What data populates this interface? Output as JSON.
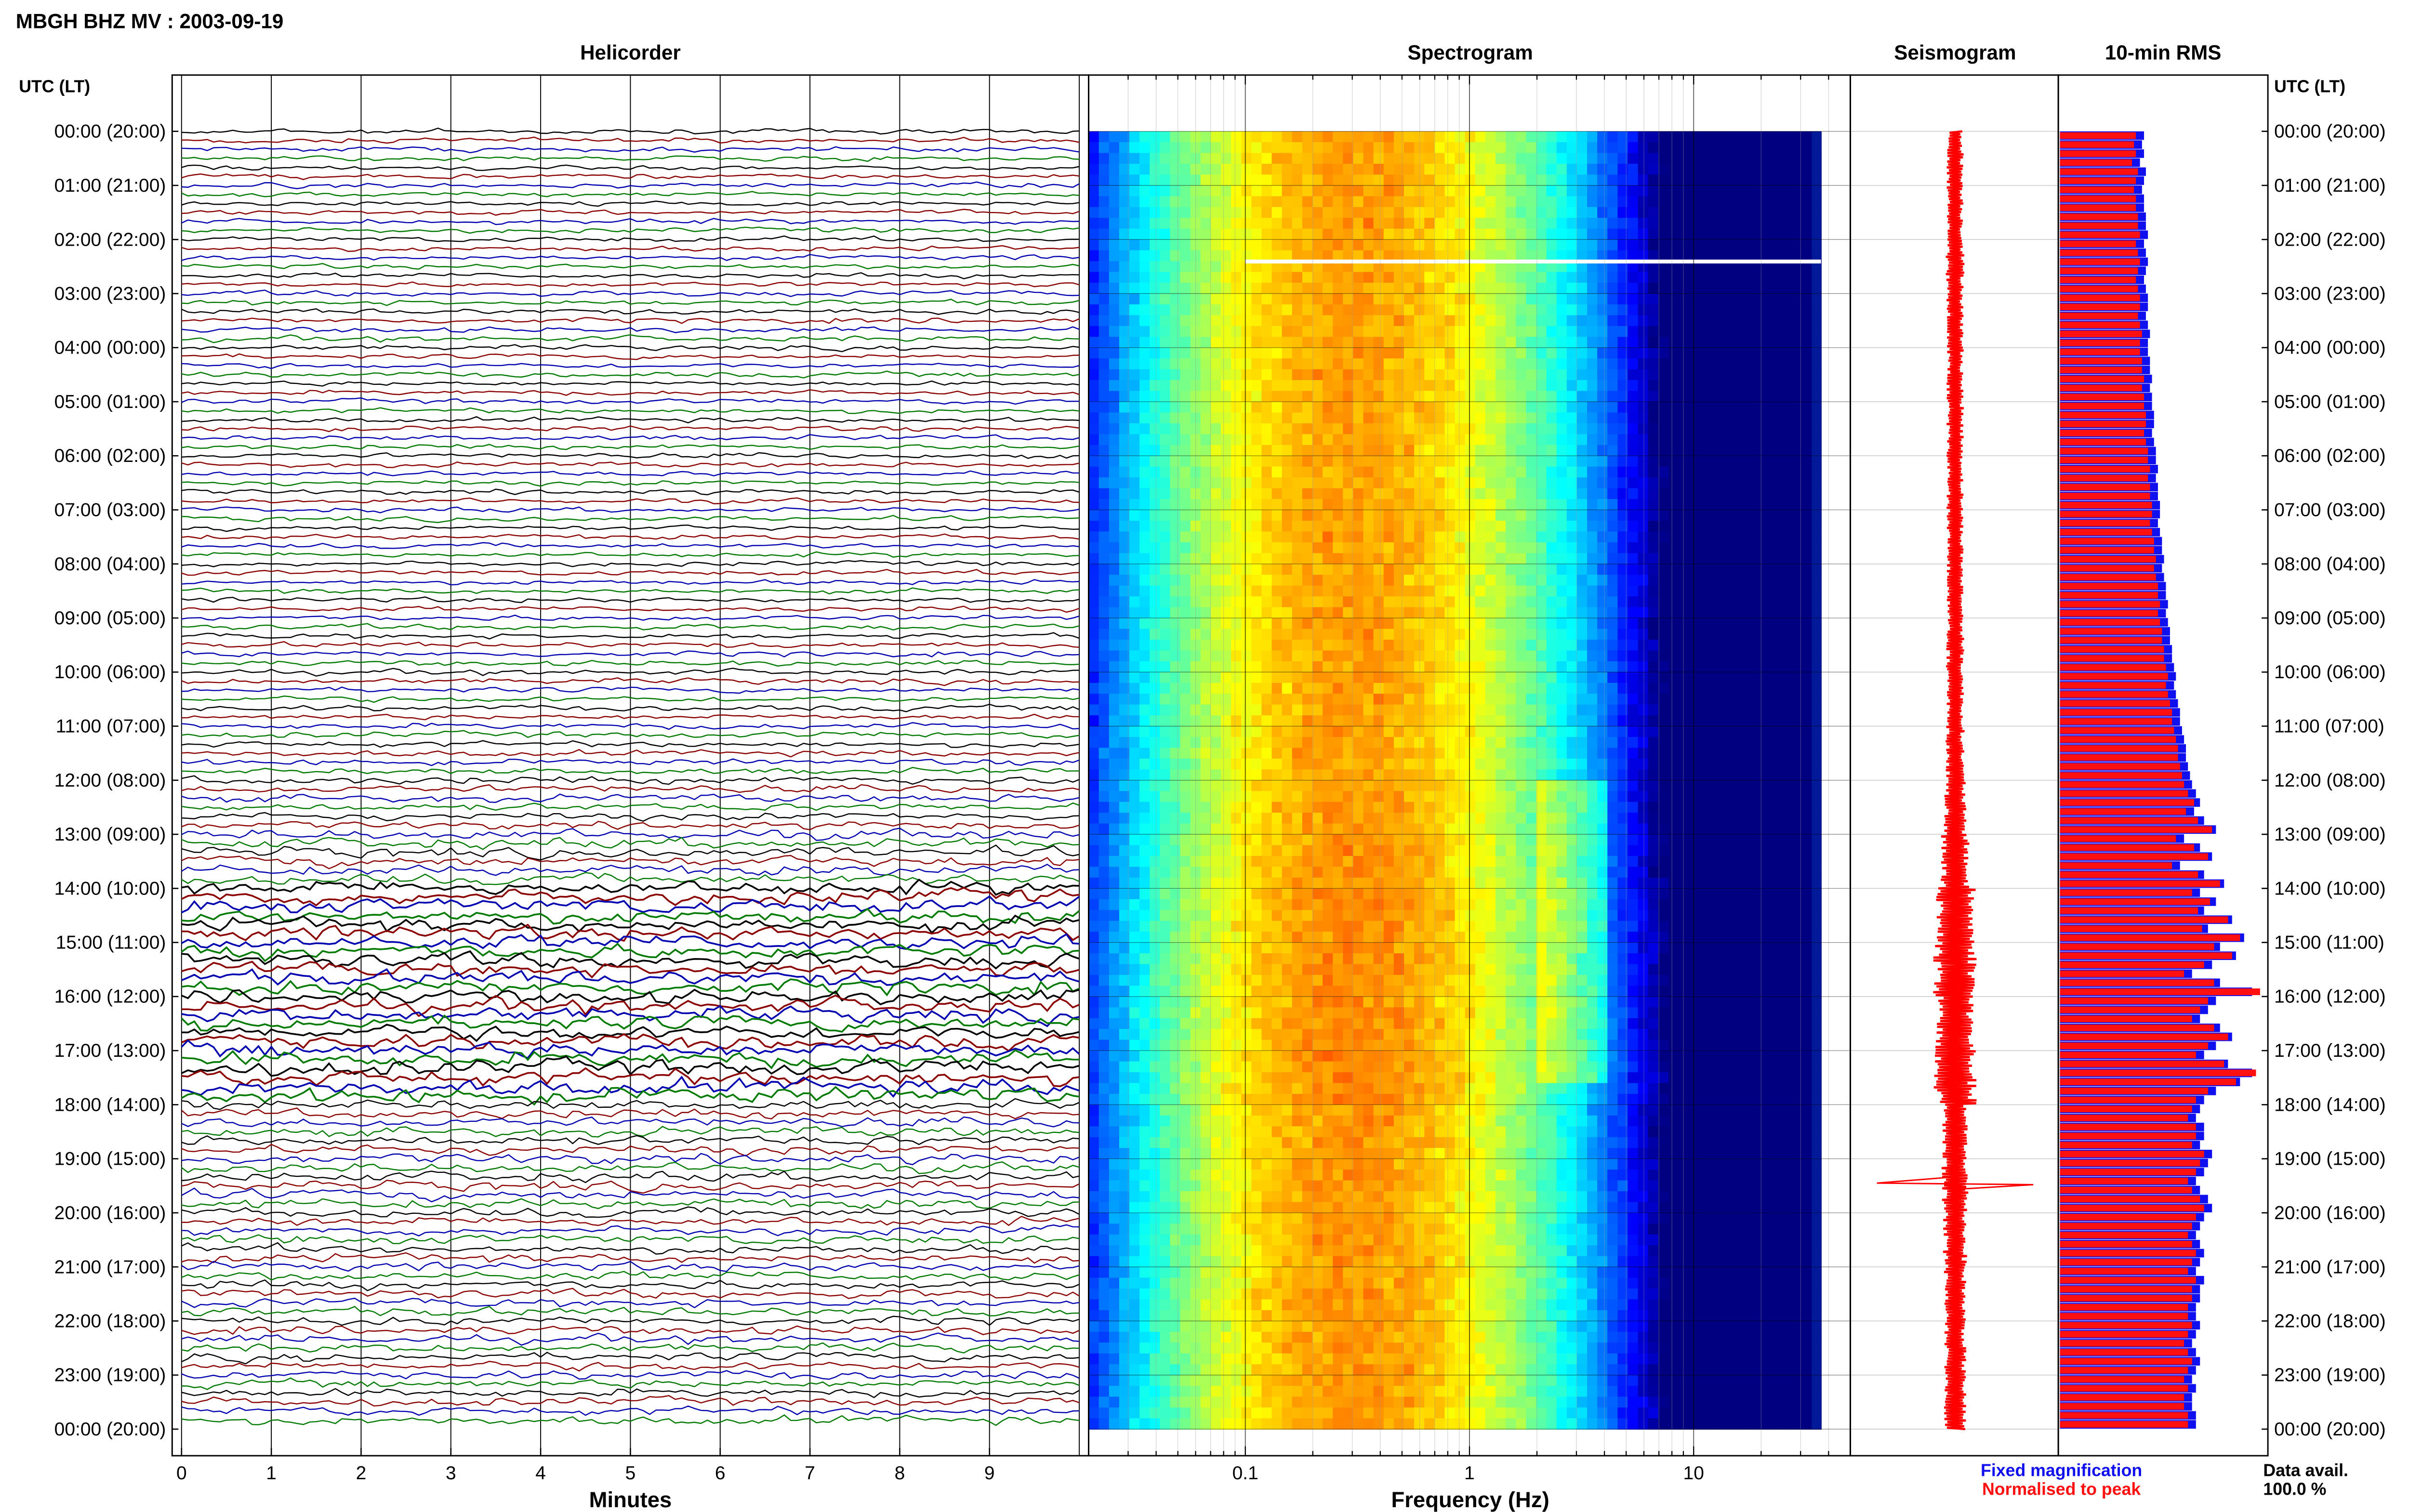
{
  "header": {
    "title": "MBGH BHZ MV : 2003-09-19",
    "time_label_left": "UTC (LT)",
    "time_label_right": "UTC (LT)"
  },
  "panels": {
    "helicorder": "Helicorder",
    "spectrogram": "Spectrogram",
    "seismogram": "Seismogram",
    "rms": "10-min RMS"
  },
  "legend": {
    "fixed": "Fixed magnification",
    "normalised": "Normalised to peak",
    "fixed_color": "#1010ee",
    "normalised_color": "#ff1010"
  },
  "data_avail": {
    "label": "Data avail.",
    "value": "100.0 %"
  },
  "chart_data": {
    "type": "heatmap",
    "time_ticks": [
      "00:00 (20:00)",
      "01:00 (21:00)",
      "02:00 (22:00)",
      "03:00 (23:00)",
      "04:00 (00:00)",
      "05:00 (01:00)",
      "06:00 (02:00)",
      "07:00 (03:00)",
      "08:00 (04:00)",
      "09:00 (05:00)",
      "10:00 (06:00)",
      "11:00 (07:00)",
      "12:00 (08:00)",
      "13:00 (09:00)",
      "14:00 (10:00)",
      "15:00 (11:00)",
      "16:00 (12:00)",
      "17:00 (13:00)",
      "18:00 (14:00)",
      "19:00 (15:00)",
      "20:00 (16:00)",
      "21:00 (17:00)",
      "22:00 (18:00)",
      "23:00 (19:00)",
      "00:00 (20:00)"
    ],
    "helicorder": {
      "xlabel": "Minutes",
      "xlim": [
        0,
        10
      ],
      "x_ticks": [
        "0",
        "1",
        "2",
        "3",
        "4",
        "5",
        "6",
        "7",
        "8",
        "9"
      ],
      "trace_colors": [
        "#000000",
        "#8b0000",
        "#0000b0",
        "#007a00"
      ],
      "hourly_activity": [
        1.0,
        1.0,
        1.0,
        1.1,
        1.0,
        1.0,
        1.0,
        1.0,
        1.0,
        1.1,
        1.1,
        1.2,
        1.5,
        2.1,
        2.9,
        3.0,
        2.9,
        3.2,
        1.9,
        2.0,
        1.8,
        1.8,
        1.7,
        1.7
      ]
    },
    "spectrogram": {
      "xlabel": "Frequency (Hz)",
      "x_scale": "log",
      "xlim": [
        0.02,
        50
      ],
      "x_ticks": [
        {
          "value": 0.1,
          "label": "0.1"
        },
        {
          "value": 1,
          "label": "1"
        },
        {
          "value": 10,
          "label": "10"
        }
      ],
      "max_frequency": 37,
      "peak_frequency": 0.3,
      "band_frequency_range": [
        2,
        4
      ],
      "band_hours": [
        12,
        17.5
      ],
      "gap_hour": 2.4
    },
    "rms": {
      "blue_values": [
        0.42,
        0.41,
        0.42,
        0.4,
        0.43,
        0.42,
        0.41,
        0.42,
        0.42,
        0.43,
        0.43,
        0.44,
        0.42,
        0.43,
        0.44,
        0.43,
        0.42,
        0.43,
        0.44,
        0.44,
        0.43,
        0.44,
        0.45,
        0.44,
        0.44,
        0.45,
        0.45,
        0.46,
        0.45,
        0.46,
        0.46,
        0.47,
        0.47,
        0.46,
        0.47,
        0.48,
        0.48,
        0.49,
        0.48,
        0.49,
        0.49,
        0.5,
        0.5,
        0.49,
        0.5,
        0.51,
        0.51,
        0.52,
        0.51,
        0.52,
        0.53,
        0.53,
        0.54,
        0.53,
        0.54,
        0.55,
        0.55,
        0.56,
        0.56,
        0.57,
        0.58,
        0.57,
        0.58,
        0.59,
        0.6,
        0.6,
        0.61,
        0.62,
        0.63,
        0.63,
        0.64,
        0.65,
        0.66,
        0.68,
        0.7,
        0.67,
        0.72,
        0.78,
        0.62,
        0.7,
        0.76,
        0.6,
        0.72,
        0.82,
        0.7,
        0.78,
        0.72,
        0.86,
        0.74,
        0.92,
        0.8,
        0.88,
        0.76,
        0.66,
        0.8,
        0.96,
        0.78,
        0.74,
        0.7,
        0.8,
        0.86,
        0.78,
        0.72,
        0.84,
        0.96,
        0.9,
        0.78,
        0.72,
        0.7,
        0.68,
        0.72,
        0.72,
        0.7,
        0.76,
        0.74,
        0.72,
        0.68,
        0.7,
        0.74,
        0.76,
        0.72,
        0.7,
        0.68,
        0.7,
        0.72,
        0.7,
        0.68,
        0.72,
        0.7,
        0.7,
        0.68,
        0.68,
        0.7,
        0.68,
        0.66,
        0.68,
        0.7,
        0.68,
        0.66,
        0.68,
        0.66,
        0.66,
        0.68,
        0.68
      ],
      "red_values": [
        0.38,
        0.37,
        0.38,
        0.36,
        0.39,
        0.38,
        0.37,
        0.38,
        0.38,
        0.39,
        0.39,
        0.4,
        0.38,
        0.39,
        0.4,
        0.39,
        0.38,
        0.39,
        0.4,
        0.4,
        0.39,
        0.4,
        0.41,
        0.4,
        0.4,
        0.41,
        0.41,
        0.42,
        0.41,
        0.42,
        0.42,
        0.43,
        0.43,
        0.42,
        0.43,
        0.44,
        0.44,
        0.45,
        0.44,
        0.45,
        0.45,
        0.46,
        0.46,
        0.45,
        0.46,
        0.47,
        0.47,
        0.48,
        0.47,
        0.48,
        0.49,
        0.49,
        0.5,
        0.49,
        0.5,
        0.51,
        0.51,
        0.52,
        0.52,
        0.53,
        0.54,
        0.53,
        0.54,
        0.55,
        0.56,
        0.56,
        0.57,
        0.58,
        0.59,
        0.59,
        0.6,
        0.61,
        0.62,
        0.64,
        0.67,
        0.63,
        0.69,
        0.76,
        0.58,
        0.67,
        0.74,
        0.56,
        0.69,
        0.8,
        0.66,
        0.75,
        0.69,
        0.84,
        0.71,
        0.9,
        0.77,
        0.86,
        0.72,
        0.62,
        0.77,
        1.0,
        0.74,
        0.7,
        0.66,
        0.77,
        0.84,
        0.74,
        0.68,
        0.82,
        0.98,
        0.88,
        0.74,
        0.68,
        0.66,
        0.64,
        0.68,
        0.68,
        0.66,
        0.72,
        0.7,
        0.68,
        0.64,
        0.66,
        0.7,
        0.72,
        0.68,
        0.66,
        0.64,
        0.66,
        0.68,
        0.66,
        0.64,
        0.68,
        0.66,
        0.66,
        0.64,
        0.64,
        0.66,
        0.64,
        0.62,
        0.64,
        0.66,
        0.64,
        0.62,
        0.64,
        0.62,
        0.62,
        0.64,
        0.64
      ]
    },
    "seismogram": {
      "color": "#ff0000",
      "hourly_amplitude": [
        1.0,
        1.0,
        1.1,
        1.0,
        1.0,
        1.0,
        1.0,
        1.0,
        1.0,
        1.05,
        1.05,
        1.1,
        1.3,
        1.7,
        2.4,
        2.6,
        2.3,
        2.5,
        1.5,
        1.6,
        1.4,
        1.3,
        1.3,
        1.3
      ]
    }
  }
}
